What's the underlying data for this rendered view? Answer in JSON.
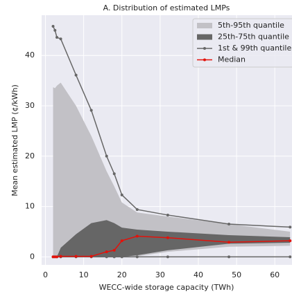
{
  "chart_data": {
    "type": "line",
    "title": "A. Distribution of estimated LMPs",
    "xlabel": "WECC-wide storage capacity (TWh)",
    "ylabel": "Mean estimated LMP (¢/kWh)",
    "x": [
      2,
      2.5,
      3,
      4,
      8,
      12,
      16,
      18,
      20,
      24,
      32,
      48,
      64
    ],
    "series": [
      {
        "name": "5th-95th quantile",
        "color": "#c2c1c6",
        "kind": "band",
        "upper": [
          33.7,
          33.5,
          34,
          34.6,
          30,
          24,
          17,
          14,
          10.8,
          8.8,
          8,
          6.5,
          5
        ],
        "lower": [
          0,
          0,
          0,
          0,
          0,
          0,
          0,
          0,
          0,
          0.1,
          1,
          2,
          2.2
        ]
      },
      {
        "name": "25th-75th quantile",
        "color": "#666666",
        "kind": "band",
        "upper": [
          0,
          0,
          0,
          1.8,
          4.5,
          6.7,
          7.3,
          6.7,
          5.8,
          5.4,
          5,
          4.3,
          3.9
        ],
        "lower": [
          0,
          0,
          0,
          0,
          0,
          0,
          0,
          0,
          0,
          0.3,
          1.3,
          2.6,
          2.8
        ]
      },
      {
        "name": "1st & 99th quantile",
        "color": "#666666",
        "kind": "lines",
        "upper": [
          45.8,
          45,
          43.6,
          43.3,
          36.1,
          29.1,
          20,
          16.5,
          12.3,
          9.4,
          8.3,
          6.5,
          5.9
        ],
        "lower": [
          0,
          0,
          0,
          0,
          0,
          0,
          0,
          0,
          0,
          0,
          0,
          0,
          0
        ]
      },
      {
        "name": "Median",
        "color": "#e3120b",
        "kind": "line",
        "values": [
          0,
          0,
          0,
          0.1,
          0.1,
          0.1,
          1,
          1.3,
          3.2,
          4.1,
          3.8,
          2.9,
          3.2
        ]
      }
    ],
    "xlim": [
      -1,
      64.5
    ],
    "ylim": [
      -1.6,
      48
    ],
    "xticks": [
      0,
      10,
      20,
      30,
      40,
      50,
      60
    ],
    "yticks": [
      0,
      10,
      20,
      30,
      40
    ],
    "grid": true,
    "legend": "upper right"
  }
}
